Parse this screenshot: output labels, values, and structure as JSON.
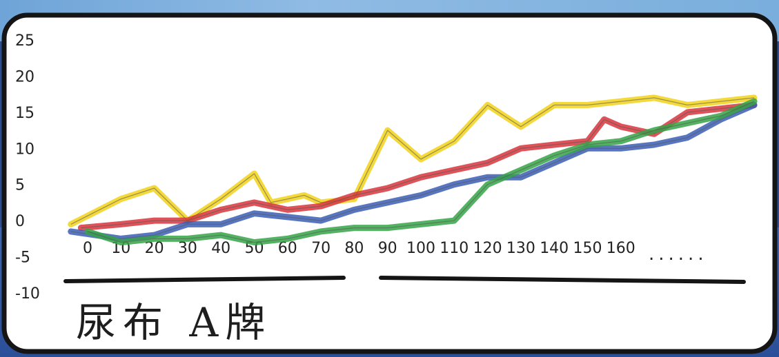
{
  "chart_data": {
    "type": "line",
    "title": "尿布 A牌",
    "xlabel": "",
    "ylabel": "",
    "x_ticks": [
      "0",
      "10",
      "20",
      "30",
      "40",
      "50",
      "60",
      "70",
      "80",
      "90",
      "100",
      "110",
      "120",
      "130",
      "140",
      "150",
      "160"
    ],
    "x_ellipsis": "......",
    "y_ticks": [
      "25",
      "20",
      "15",
      "10",
      "5",
      "0",
      "-5",
      "-10"
    ],
    "ylim": [
      -10,
      25
    ],
    "grid": false,
    "legend": "none",
    "series": [
      {
        "color": "#f2d21a",
        "points": [
          [
            -5,
            -0.5
          ],
          [
            10,
            3
          ],
          [
            20,
            4.5
          ],
          [
            30,
            0
          ],
          [
            40,
            3
          ],
          [
            50,
            6.5
          ],
          [
            55,
            2.5
          ],
          [
            60,
            3
          ],
          [
            65,
            3.5
          ],
          [
            70,
            2.5
          ],
          [
            80,
            3
          ],
          [
            90,
            12.5
          ],
          [
            100,
            8.5
          ],
          [
            110,
            11
          ],
          [
            120,
            16
          ],
          [
            130,
            13
          ],
          [
            140,
            16
          ],
          [
            150,
            16
          ],
          [
            160,
            16.5
          ],
          [
            170,
            17
          ],
          [
            180,
            16
          ],
          [
            190,
            16.5
          ],
          [
            200,
            17
          ]
        ]
      },
      {
        "color": "#d7353c",
        "points": [
          [
            -2,
            -1
          ],
          [
            10,
            -0.5
          ],
          [
            20,
            0
          ],
          [
            30,
            0
          ],
          [
            40,
            1.5
          ],
          [
            50,
            2.5
          ],
          [
            60,
            1.5
          ],
          [
            70,
            2
          ],
          [
            80,
            3.5
          ],
          [
            90,
            4.5
          ],
          [
            100,
            6
          ],
          [
            110,
            7
          ],
          [
            120,
            8
          ],
          [
            130,
            10
          ],
          [
            140,
            10.5
          ],
          [
            150,
            11
          ],
          [
            155,
            14
          ],
          [
            160,
            13
          ],
          [
            170,
            12
          ],
          [
            180,
            15
          ],
          [
            190,
            15.5
          ],
          [
            200,
            16
          ]
        ]
      },
      {
        "color": "#3b5db5",
        "points": [
          [
            -5,
            -1.5
          ],
          [
            10,
            -2.5
          ],
          [
            20,
            -2
          ],
          [
            30,
            -0.5
          ],
          [
            40,
            -0.5
          ],
          [
            50,
            1
          ],
          [
            60,
            0.5
          ],
          [
            70,
            0
          ],
          [
            80,
            1.5
          ],
          [
            90,
            2.5
          ],
          [
            100,
            3.5
          ],
          [
            110,
            5
          ],
          [
            120,
            6
          ],
          [
            130,
            6
          ],
          [
            140,
            8
          ],
          [
            150,
            10
          ],
          [
            160,
            10
          ],
          [
            170,
            10.5
          ],
          [
            180,
            11.5
          ],
          [
            190,
            14
          ],
          [
            200,
            16
          ]
        ]
      },
      {
        "color": "#35a447",
        "points": [
          [
            0,
            -1.5
          ],
          [
            10,
            -3
          ],
          [
            20,
            -2.5
          ],
          [
            30,
            -2.5
          ],
          [
            40,
            -2
          ],
          [
            50,
            -3
          ],
          [
            60,
            -2.5
          ],
          [
            70,
            -1.5
          ],
          [
            80,
            -1
          ],
          [
            90,
            -1
          ],
          [
            100,
            -0.5
          ],
          [
            110,
            0
          ],
          [
            120,
            5
          ],
          [
            130,
            7
          ],
          [
            140,
            9
          ],
          [
            150,
            10.5
          ],
          [
            160,
            11
          ],
          [
            170,
            12.5
          ],
          [
            180,
            13.5
          ],
          [
            190,
            14.5
          ],
          [
            200,
            16.5
          ]
        ]
      }
    ]
  }
}
